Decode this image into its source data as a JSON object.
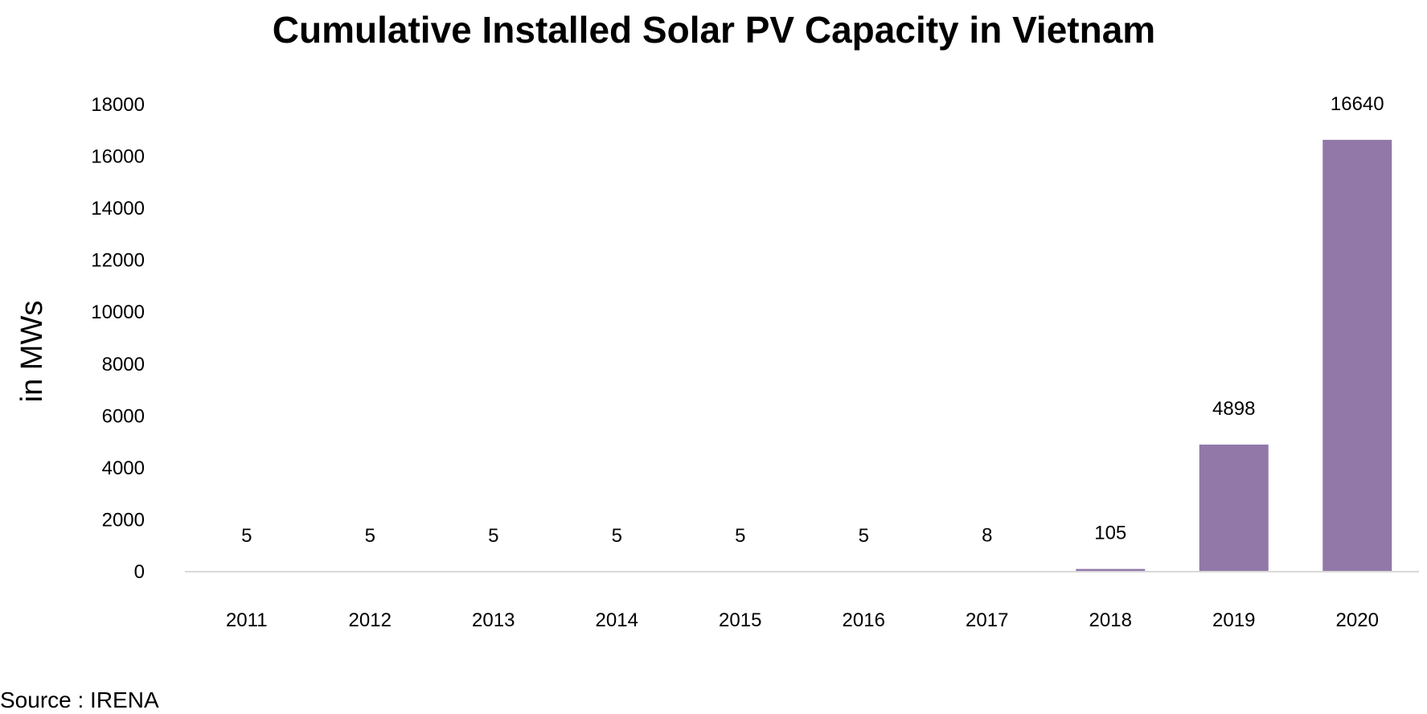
{
  "chart_data": {
    "type": "bar",
    "title": "Cumulative Installed Solar PV Capacity in Vietnam",
    "xlabel": "",
    "ylabel": "in MWs",
    "categories": [
      "2011",
      "2012",
      "2013",
      "2014",
      "2015",
      "2016",
      "2017",
      "2018",
      "2019",
      "2020"
    ],
    "values": [
      5,
      5,
      5,
      5,
      5,
      5,
      8,
      105,
      4898,
      16640
    ],
    "data_labels": [
      "5",
      "5",
      "5",
      "5",
      "5",
      "5",
      "8",
      "105",
      "4898",
      "16640"
    ],
    "ylim": [
      0,
      18000
    ],
    "yticks": [
      0,
      2000,
      4000,
      6000,
      8000,
      10000,
      12000,
      14000,
      16000,
      18000
    ],
    "ytick_labels": [
      "0",
      "2000",
      "4000",
      "6000",
      "8000",
      "10000",
      "12000",
      "14000",
      "16000",
      "18000"
    ],
    "grid": false,
    "legend": "none",
    "bar_color": "#9278a8",
    "axis_color": "#d9d9d9"
  },
  "source": "Source : IRENA"
}
